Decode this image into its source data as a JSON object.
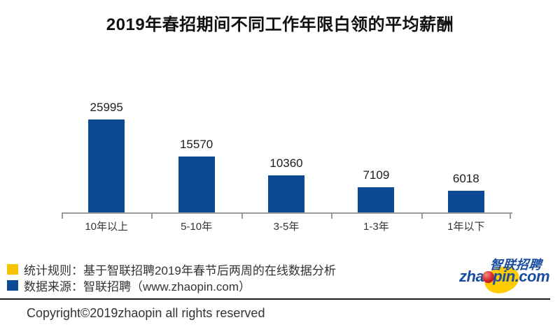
{
  "chart_data": {
    "type": "bar",
    "title": "2019年春招期间不同工作年限白领的平均薪酬",
    "categories": [
      "10年以上",
      "5-10年",
      "3-5年",
      "1-3年",
      "1年以下"
    ],
    "values": [
      25995,
      15570,
      10360,
      7109,
      6018
    ],
    "xlabel": "",
    "ylabel": "",
    "ylim": [
      0,
      26000
    ],
    "grid": false,
    "legend_position": "bottom-left",
    "bar_color": "#0D4A96",
    "value_labels_shown": true
  },
  "legend": {
    "items": [
      {
        "swatch_color": "#F5C400",
        "text": "统计规则：基于智联招聘2019年春节后两周的在线数据分析"
      },
      {
        "swatch_color": "#0D4A96",
        "text": "数据来源：智联招聘（www.zhaopin.com）"
      }
    ]
  },
  "footer": {
    "copyright": "Copyright©2019zhaopin all rights reserved"
  },
  "logo": {
    "cn_text": "智联招聘",
    "en_text_pre": "zha",
    "en_text_post": "pin.com",
    "colors": {
      "blue": "#1A4DA1",
      "yellow": "#FFCC00",
      "red": "#D2232A"
    }
  }
}
